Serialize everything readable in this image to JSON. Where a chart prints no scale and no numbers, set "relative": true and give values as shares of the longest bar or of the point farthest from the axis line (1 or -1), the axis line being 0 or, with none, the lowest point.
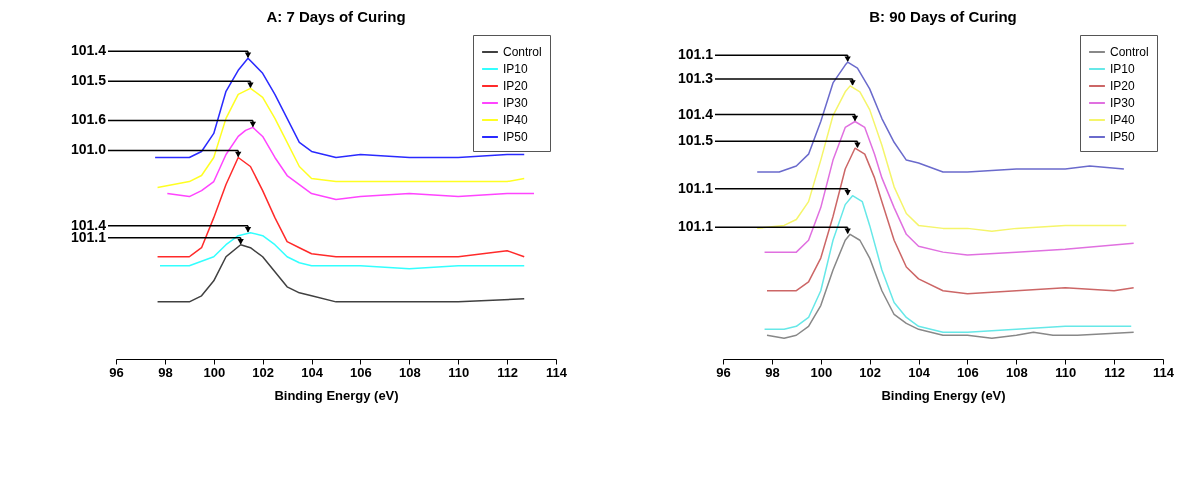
{
  "chart_data": [
    {
      "type": "line",
      "title": "A: 7 Days of Curing",
      "xlabel": "Binding Energy (eV)",
      "relative": true,
      "xlim": [
        96,
        114
      ],
      "xticks": [
        96,
        98,
        100,
        102,
        104,
        106,
        108,
        110,
        112,
        114
      ],
      "grid": false,
      "legend": "top right",
      "marker": "none",
      "line_style": "solid",
      "series": [
        {
          "name": "Control",
          "color": "#404040",
          "x": [
            97.7,
            99,
            99.5,
            100,
            100.5,
            101.1,
            101.5,
            102,
            102.5,
            103,
            103.5,
            104,
            105,
            106,
            108,
            110,
            112.7
          ],
          "values": [
            0.19,
            0.19,
            0.21,
            0.26,
            0.34,
            0.38,
            0.37,
            0.34,
            0.29,
            0.24,
            0.22,
            0.21,
            0.19,
            0.19,
            0.19,
            0.19,
            0.2
          ]
        },
        {
          "name": "IP10",
          "color": "#33ffff",
          "x": [
            97.8,
            99,
            100,
            100.5,
            101,
            101.5,
            102,
            102.5,
            103,
            103.5,
            104,
            106,
            108,
            110,
            112.7
          ],
          "values": [
            0.31,
            0.31,
            0.34,
            0.38,
            0.41,
            0.42,
            0.41,
            0.38,
            0.34,
            0.32,
            0.31,
            0.31,
            0.3,
            0.31,
            0.31
          ]
        },
        {
          "name": "IP20",
          "color": "#ff2a2a",
          "x": [
            97.7,
            99,
            99.5,
            100,
            100.5,
            101,
            101.5,
            102,
            102.5,
            103,
            103.5,
            104,
            105,
            106,
            108,
            110,
            112,
            112.7
          ],
          "values": [
            0.34,
            0.34,
            0.37,
            0.47,
            0.58,
            0.67,
            0.64,
            0.56,
            0.47,
            0.39,
            0.37,
            0.35,
            0.34,
            0.34,
            0.34,
            0.34,
            0.36,
            0.34
          ]
        },
        {
          "name": "IP30",
          "color": "#ff44ff",
          "x": [
            98.1,
            99,
            99.5,
            100,
            100.5,
            101,
            101.3,
            101.6,
            102,
            102.5,
            103,
            103.5,
            104,
            105,
            106,
            108,
            110,
            112,
            113.1
          ],
          "values": [
            0.55,
            0.54,
            0.56,
            0.59,
            0.68,
            0.74,
            0.76,
            0.77,
            0.74,
            0.67,
            0.61,
            0.58,
            0.55,
            0.53,
            0.54,
            0.55,
            0.54,
            0.55,
            0.55
          ]
        },
        {
          "name": "IP40",
          "color": "#ffff22",
          "x": [
            97.7,
            99,
            99.5,
            100,
            100.5,
            101,
            101.5,
            102,
            102.5,
            103,
            103.5,
            104,
            105,
            106,
            108,
            110,
            112,
            112.7
          ],
          "values": [
            0.57,
            0.59,
            0.61,
            0.67,
            0.8,
            0.88,
            0.9,
            0.87,
            0.8,
            0.72,
            0.64,
            0.6,
            0.59,
            0.59,
            0.59,
            0.59,
            0.59,
            0.6
          ]
        },
        {
          "name": "IP50",
          "color": "#2a2aff",
          "x": [
            97.6,
            98.5,
            99,
            99.5,
            100,
            100.5,
            101,
            101.4,
            102,
            102.5,
            103,
            103.5,
            104,
            105,
            106,
            108,
            110,
            112,
            112.7
          ],
          "values": [
            0.67,
            0.67,
            0.67,
            0.69,
            0.75,
            0.89,
            0.96,
            1.0,
            0.95,
            0.88,
            0.8,
            0.72,
            0.69,
            0.67,
            0.68,
            0.67,
            0.67,
            0.68,
            0.68
          ]
        }
      ],
      "annotations": [
        {
          "text": "101.4",
          "x": 101.4,
          "y": 1.0
        },
        {
          "text": "101.5",
          "x": 101.5,
          "y": 0.9
        },
        {
          "text": "101.6",
          "x": 101.6,
          "y": 0.77
        },
        {
          "text": "101.0",
          "x": 101.0,
          "y": 0.67
        },
        {
          "text": "101.4",
          "x": 101.4,
          "y": 0.42
        },
        {
          "text": "101.1",
          "x": 101.1,
          "y": 0.38
        }
      ]
    },
    {
      "type": "line",
      "title": "B: 90 Days of Curing",
      "xlabel": "Binding Energy (eV)",
      "relative": true,
      "xlim": [
        96,
        114
      ],
      "xticks": [
        96,
        98,
        100,
        102,
        104,
        106,
        108,
        110,
        112,
        114
      ],
      "grid": false,
      "legend": "top right",
      "marker": "none",
      "line_style": "solid",
      "series": [
        {
          "name": "Control",
          "color": "#888888",
          "x": [
            97.8,
            98.5,
            99,
            99.5,
            100,
            100.5,
            101,
            101.2,
            101.6,
            102,
            102.5,
            103,
            103.5,
            104,
            105,
            106,
            107,
            108,
            108.7,
            109.5,
            110.5,
            112.8
          ],
          "values": [
            0.08,
            0.07,
            0.08,
            0.11,
            0.18,
            0.3,
            0.4,
            0.42,
            0.4,
            0.34,
            0.23,
            0.15,
            0.12,
            0.1,
            0.08,
            0.08,
            0.07,
            0.08,
            0.09,
            0.08,
            0.08,
            0.09
          ]
        },
        {
          "name": "IP10",
          "color": "#66e8e8",
          "x": [
            97.7,
            98.5,
            99,
            99.5,
            100,
            100.5,
            101,
            101.3,
            101.7,
            102,
            102.5,
            103,
            103.5,
            104,
            105,
            106,
            108,
            110,
            112.7
          ],
          "values": [
            0.1,
            0.1,
            0.11,
            0.14,
            0.23,
            0.4,
            0.52,
            0.55,
            0.53,
            0.45,
            0.3,
            0.19,
            0.14,
            0.11,
            0.09,
            0.09,
            0.1,
            0.11,
            0.11
          ]
        },
        {
          "name": "IP20",
          "color": "#cc6666",
          "x": [
            97.8,
            99,
            99.5,
            100,
            100.5,
            101,
            101.4,
            101.8,
            102.2,
            102.5,
            103,
            103.5,
            104,
            105,
            106,
            108,
            110,
            112,
            112.8
          ],
          "values": [
            0.23,
            0.23,
            0.26,
            0.34,
            0.48,
            0.64,
            0.71,
            0.69,
            0.61,
            0.53,
            0.4,
            0.31,
            0.27,
            0.23,
            0.22,
            0.23,
            0.24,
            0.23,
            0.24
          ]
        },
        {
          "name": "IP30",
          "color": "#e070e0",
          "x": [
            97.7,
            99,
            99.5,
            100,
            100.5,
            101,
            101.4,
            101.8,
            102.2,
            102.5,
            103,
            103.5,
            104,
            105,
            106,
            108,
            110,
            112.8
          ],
          "values": [
            0.36,
            0.36,
            0.4,
            0.51,
            0.67,
            0.78,
            0.8,
            0.78,
            0.69,
            0.61,
            0.51,
            0.42,
            0.38,
            0.36,
            0.35,
            0.36,
            0.37,
            0.39
          ]
        },
        {
          "name": "IP40",
          "color": "#f5f56a",
          "x": [
            97.4,
            98.5,
            99,
            99.5,
            100,
            100.5,
            101,
            101.2,
            101.6,
            102,
            102.5,
            103,
            103.5,
            104,
            105,
            106,
            107,
            108,
            110,
            112.5
          ],
          "values": [
            0.44,
            0.45,
            0.47,
            0.53,
            0.67,
            0.82,
            0.9,
            0.92,
            0.9,
            0.84,
            0.72,
            0.58,
            0.49,
            0.45,
            0.44,
            0.44,
            0.43,
            0.44,
            0.45,
            0.45
          ]
        },
        {
          "name": "IP50",
          "color": "#6a6acc",
          "x": [
            97.4,
            98.3,
            99,
            99.5,
            100,
            100.5,
            101,
            101.1,
            101.5,
            102,
            102.5,
            103,
            103.5,
            104,
            105,
            106,
            108,
            110,
            111,
            112.4
          ],
          "values": [
            0.63,
            0.63,
            0.65,
            0.69,
            0.8,
            0.93,
            0.99,
            1.0,
            0.98,
            0.91,
            0.81,
            0.73,
            0.67,
            0.66,
            0.63,
            0.63,
            0.64,
            0.64,
            0.65,
            0.64
          ]
        }
      ],
      "annotations": [
        {
          "text": "101.1",
          "x": 101.1,
          "y": 1.0
        },
        {
          "text": "101.3",
          "x": 101.3,
          "y": 0.92
        },
        {
          "text": "101.4",
          "x": 101.4,
          "y": 0.8
        },
        {
          "text": "101.5",
          "x": 101.5,
          "y": 0.71
        },
        {
          "text": "101.1",
          "x": 101.1,
          "y": 0.55
        },
        {
          "text": "101.1",
          "x": 101.1,
          "y": 0.42
        }
      ]
    }
  ]
}
